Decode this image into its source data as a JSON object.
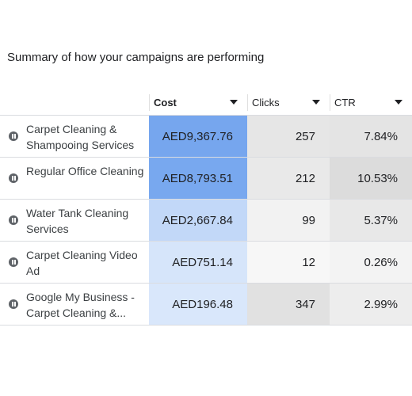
{
  "title": "Summary of how your campaigns are performing",
  "columns": {
    "cost": "Cost",
    "clicks": "Clicks",
    "ctr": "CTR"
  },
  "rows": [
    {
      "name": "Carpet Cleaning & Shampooing Services",
      "cost": "AED9,367.76",
      "clicks": "257",
      "ctr": "7.84%",
      "status_icon": "pause-icon"
    },
    {
      "name": "Regular Office Cleaning",
      "cost": "AED8,793.51",
      "clicks": "212",
      "ctr": "10.53%",
      "status_icon": "pause-icon"
    },
    {
      "name": "Water Tank Cleaning Services",
      "cost": "AED2,667.84",
      "clicks": "99",
      "ctr": "5.37%",
      "status_icon": "pause-icon"
    },
    {
      "name": "Carpet Cleaning Video Ad",
      "cost": "AED751.14",
      "clicks": "12",
      "ctr": "0.26%",
      "status_icon": "pause-icon"
    },
    {
      "name": "Google My Business - Carpet Cleaning &...",
      "cost": "AED196.48",
      "clicks": "347",
      "ctr": "2.99%",
      "status_icon": "pause-icon"
    }
  ],
  "heatmap_colors": {
    "cost": [
      "#76a6ee",
      "#78a8ef",
      "#c2d8f8",
      "#d6e5fa",
      "#d9e7fb"
    ],
    "clicks": [
      "#e6e6e6",
      "#e9e9e9",
      "#f2f2f2",
      "#f7f7f7",
      "#e1e1e1"
    ],
    "ctr": [
      "#e4e4e4",
      "#dcdcdc",
      "#e8e8e8",
      "#f3f3f3",
      "#ededed"
    ]
  }
}
